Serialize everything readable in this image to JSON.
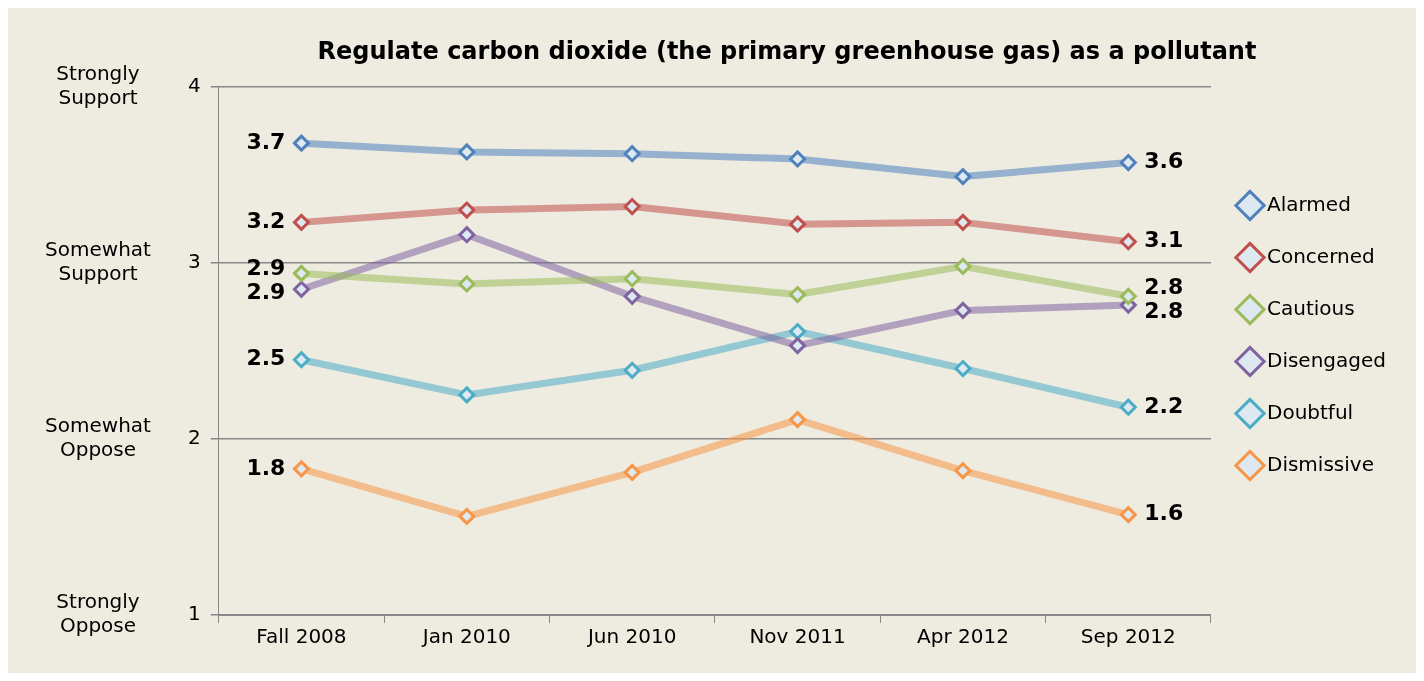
{
  "chart_data": {
    "type": "line",
    "title": "Regulate carbon dioxide (the primary greenhouse gas) as a pollutant",
    "categories": [
      "Fall 2008",
      "Jan 2010",
      "Jun 2010",
      "Nov 2011",
      "Apr 2012",
      "Sep 2012"
    ],
    "series": [
      {
        "name": "Alarmed",
        "color": "#4f81bd",
        "values": [
          3.68,
          3.63,
          3.62,
          3.59,
          3.49,
          3.57
        ],
        "value_labels": [
          "3.7",
          null,
          null,
          null,
          null,
          "3.6"
        ]
      },
      {
        "name": "Concerned",
        "color": "#c0504d",
        "values": [
          3.23,
          3.3,
          3.32,
          3.22,
          3.23,
          3.12
        ],
        "value_labels": [
          "3.2",
          null,
          null,
          null,
          null,
          "3.1"
        ]
      },
      {
        "name": "Cautious",
        "color": "#9bbb59",
        "values": [
          2.94,
          2.88,
          2.91,
          2.82,
          2.98,
          2.81
        ],
        "value_labels": [
          "2.9",
          null,
          null,
          null,
          null,
          "2.8"
        ]
      },
      {
        "name": "Disengaged",
        "color": "#8064a2",
        "values": [
          2.85,
          3.16,
          2.81,
          2.53,
          2.73,
          2.76
        ],
        "value_labels": [
          "2.9",
          null,
          null,
          null,
          null,
          "2.8"
        ]
      },
      {
        "name": "Doubtful",
        "color": "#4bacc6",
        "values": [
          2.45,
          2.25,
          2.39,
          2.61,
          2.4,
          2.18
        ],
        "value_labels": [
          "2.5",
          null,
          null,
          null,
          null,
          "2.2"
        ]
      },
      {
        "name": "Dismissive",
        "color": "#f79646",
        "values": [
          1.83,
          1.56,
          1.81,
          2.11,
          1.82,
          1.57
        ],
        "value_labels": [
          "1.8",
          null,
          null,
          null,
          null,
          "1.6"
        ]
      }
    ],
    "ylim": [
      1,
      4
    ],
    "yticks": [
      1,
      2,
      3,
      4
    ],
    "annotations": [
      "Strongly Support",
      "Somewhat Support",
      "Somewhat Oppose",
      "Strongly Oppose"
    ],
    "grid": "y",
    "legend": "right",
    "marker": "diamond",
    "line_style": "solid"
  }
}
